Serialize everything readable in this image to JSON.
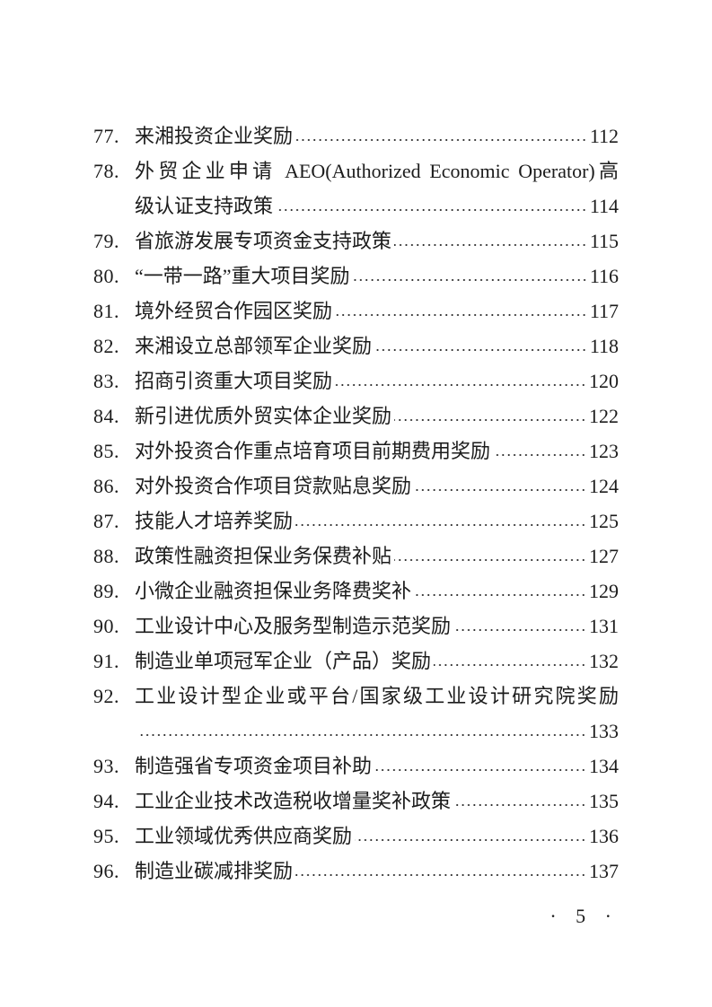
{
  "toc": [
    {
      "num": "77.",
      "title": "来湘投资企业奖励",
      "page": "112"
    },
    {
      "num": "78.",
      "title": "外贸企业申请 AEO(Authorized Economic Operator)高",
      "title_cont": "级认证支持政策",
      "page": "114"
    },
    {
      "num": "79.",
      "title": "省旅游发展专项资金支持政策",
      "page": "115"
    },
    {
      "num": "80.",
      "title": "“一带一路”重大项目奖励",
      "page": "116"
    },
    {
      "num": "81.",
      "title": "境外经贸合作园区奖励",
      "page": "117"
    },
    {
      "num": "82.",
      "title": "来湘设立总部领军企业奖励",
      "page": "118"
    },
    {
      "num": "83.",
      "title": "招商引资重大项目奖励",
      "page": "120"
    },
    {
      "num": "84.",
      "title": "新引进优质外贸实体企业奖励",
      "page": "122"
    },
    {
      "num": "85.",
      "title": "对外投资合作重点培育项目前期费用奖励",
      "page": "123"
    },
    {
      "num": "86.",
      "title": "对外投资合作项目贷款贴息奖励",
      "page": "124"
    },
    {
      "num": "87.",
      "title": "技能人才培养奖励",
      "page": "125"
    },
    {
      "num": "88.",
      "title": "政策性融资担保业务保费补贴",
      "page": "127"
    },
    {
      "num": "89.",
      "title": "小微企业融资担保业务降费奖补",
      "page": "129"
    },
    {
      "num": "90.",
      "title": "工业设计中心及服务型制造示范奖励",
      "page": "131"
    },
    {
      "num": "91.",
      "title": "制造业单项冠军企业（产品）奖励",
      "page": "132"
    },
    {
      "num": "92.",
      "title": "工业设计型企业或平台/国家级工业设计研究院奖励",
      "title_cont": "",
      "page": "133"
    },
    {
      "num": "93.",
      "title": "制造强省专项资金项目补助",
      "page": "134"
    },
    {
      "num": "94.",
      "title": "工业企业技术改造税收增量奖补政策",
      "page": "135"
    },
    {
      "num": "95.",
      "title": "工业领域优秀供应商奖励",
      "page": "136"
    },
    {
      "num": "96.",
      "title": "制造业碳减排奖励",
      "page": "137"
    }
  ],
  "page_number": "· 5 ·"
}
